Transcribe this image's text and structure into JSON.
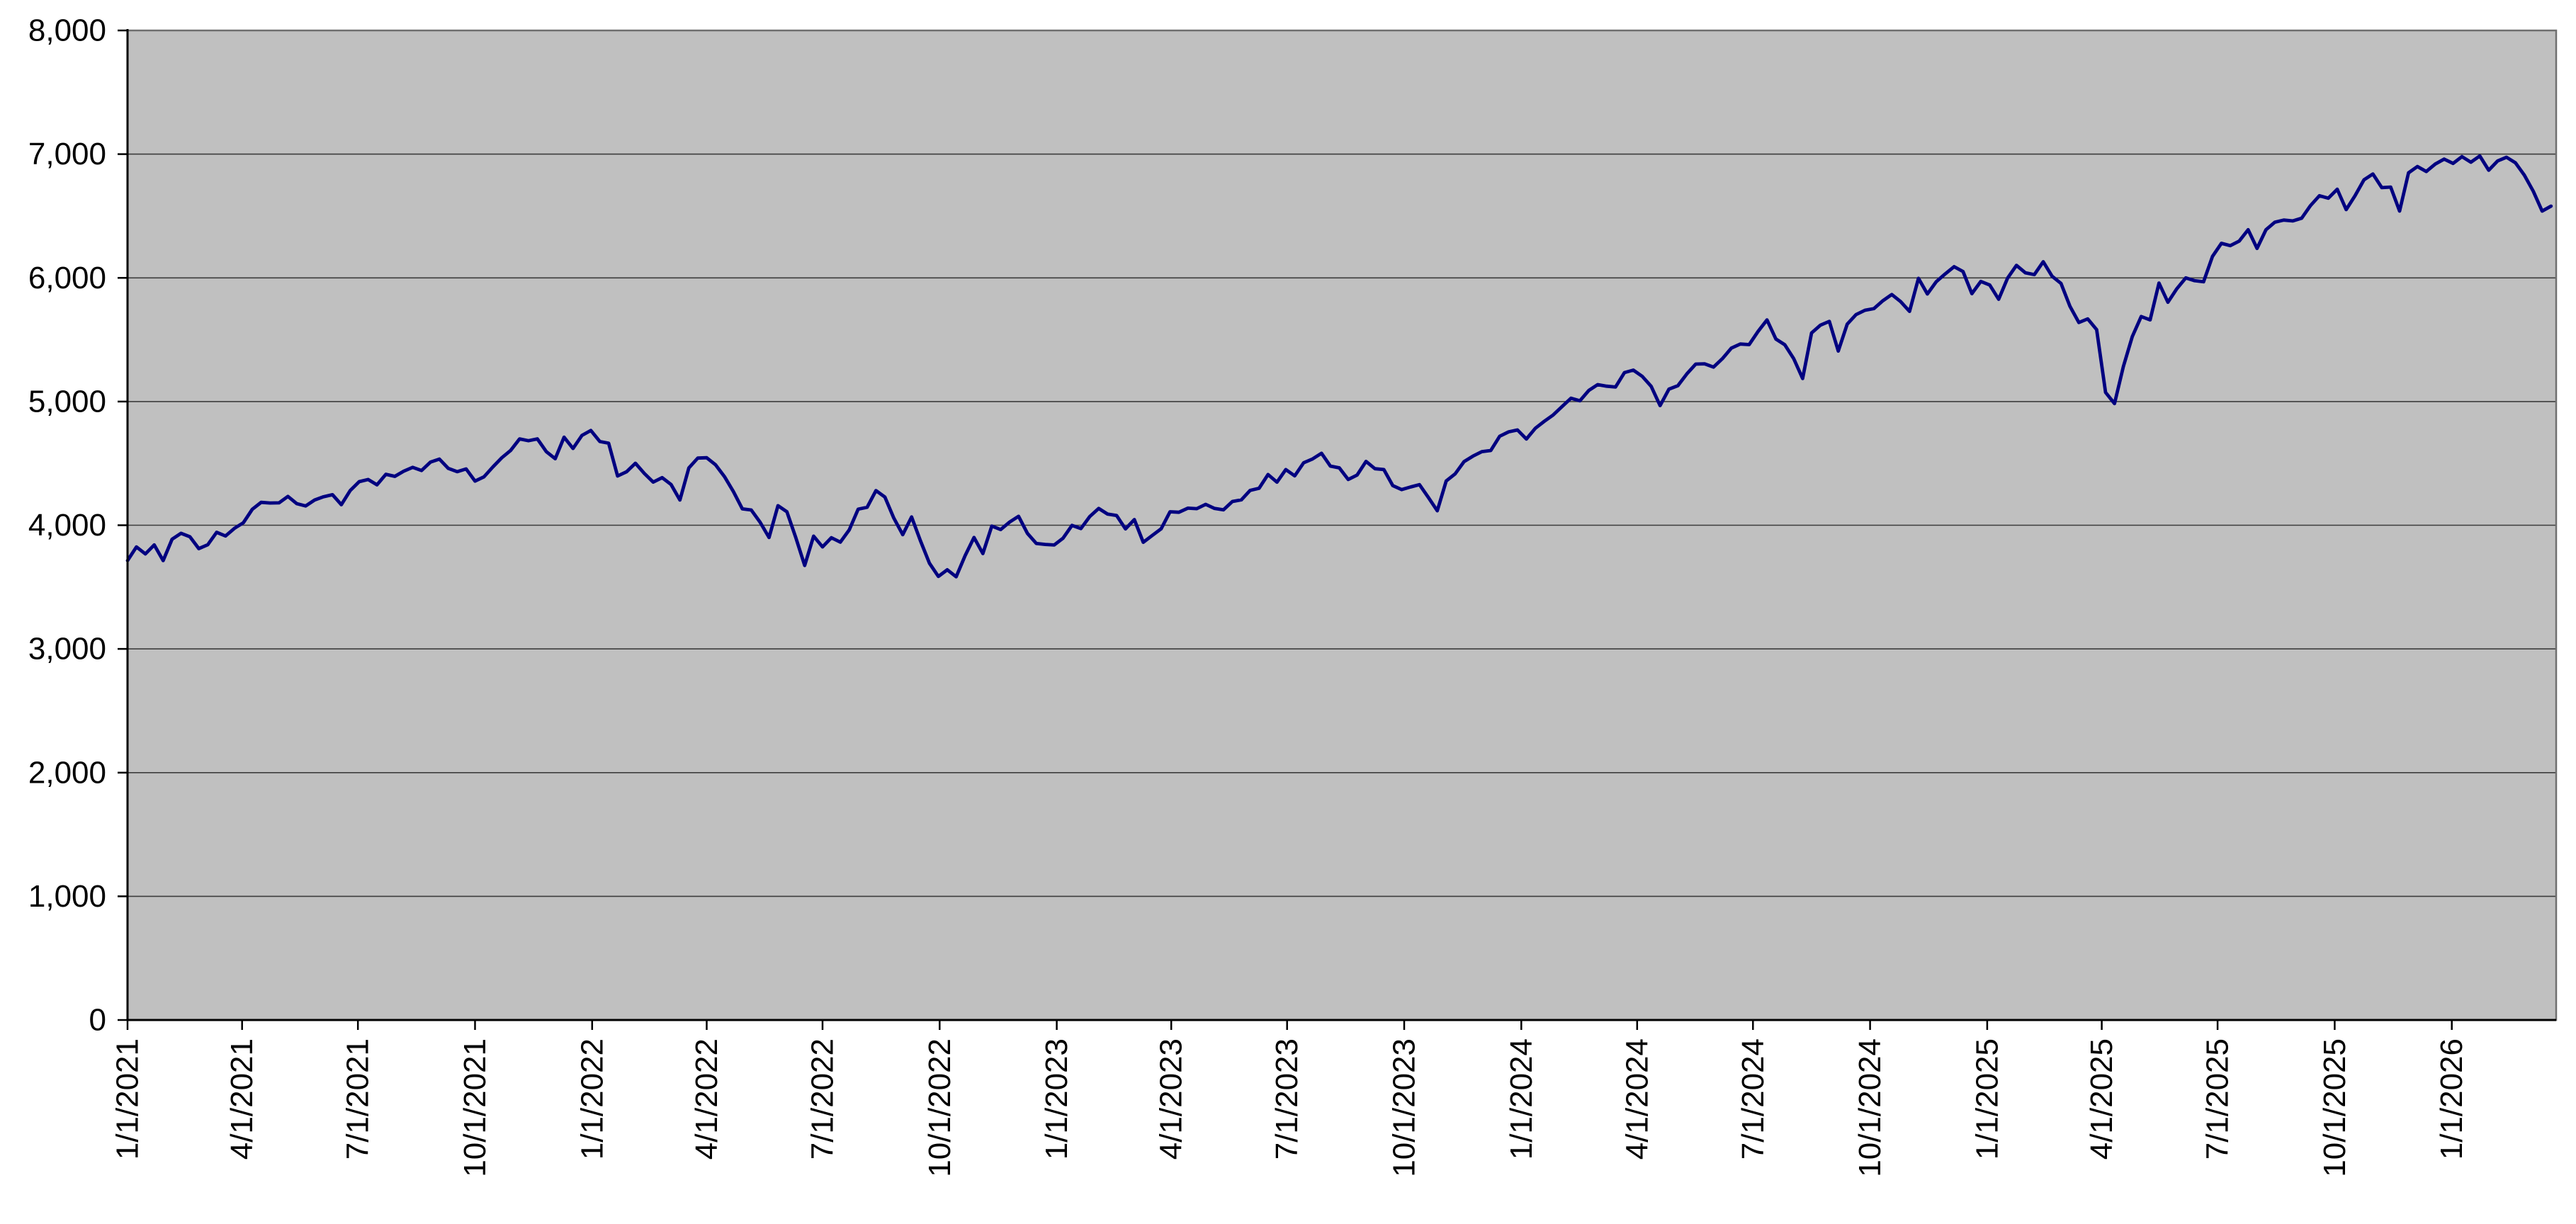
{
  "chart_data": {
    "type": "line",
    "plot_background": "#C0C0C0",
    "line_color": "#000080",
    "gridline_color": "#3C3C3C",
    "axis_color": "#000000",
    "plot_border_color": "#6F6F6F",
    "label_color": "#000000",
    "y_axis": {
      "min": 0,
      "max": 8000,
      "tick_step": 1000,
      "tick_labels": [
        "0",
        "1,000",
        "2,000",
        "3,000",
        "4,000",
        "5,000",
        "6,000",
        "7,000",
        "8,000"
      ]
    },
    "x_axis": {
      "start_date": "1/1/2021",
      "total_days_span": 1908,
      "tick_labels": [
        "1/1/2021",
        "4/1/2021",
        "7/1/2021",
        "10/1/2021",
        "1/1/2022",
        "4/1/2022",
        "7/1/2022",
        "10/1/2022",
        "1/1/2023",
        "4/1/2023",
        "7/1/2023",
        "10/1/2023",
        "1/1/2024",
        "4/1/2024",
        "7/1/2024",
        "10/1/2024",
        "1/1/2025",
        "4/1/2025",
        "7/1/2025",
        "10/1/2025",
        "1/1/2026"
      ]
    },
    "series": {
      "start_date": "1/1/2021",
      "interval_days": 7,
      "values": [
        3714,
        3825,
        3768,
        3841,
        3714,
        3887,
        3935,
        3907,
        3811,
        3842,
        3943,
        3913,
        3975,
        4020,
        4129,
        4185,
        4180,
        4181,
        4233,
        4174,
        4156,
        4204,
        4230,
        4247,
        4166,
        4281,
        4352,
        4370,
        4327,
        4412,
        4395,
        4437,
        4468,
        4442,
        4510,
        4535,
        4459,
        4433,
        4455,
        4357,
        4391,
        4471,
        4545,
        4605,
        4698,
        4683,
        4698,
        4595,
        4538,
        4712,
        4621,
        4726,
        4766,
        4677,
        4663,
        4398,
        4432,
        4501,
        4419,
        4349,
        4385,
        4329,
        4204,
        4463,
        4543,
        4546,
        4488,
        4393,
        4272,
        4132,
        4123,
        4024,
        3901,
        4158,
        4109,
        3901,
        3675,
        3912,
        3825,
        3899,
        3863,
        3962,
        4130,
        4145,
        4280,
        4228,
        4058,
        3924,
        4067,
        3873,
        3693,
        3586,
        3640,
        3583,
        3753,
        3901,
        3771,
        3993,
        3965,
        4026,
        4072,
        3934,
        3852,
        3845,
        3840,
        3895,
        3999,
        3973,
        4071,
        4136,
        4090,
        4079,
        3970,
        4046,
        3862,
        3917,
        3971,
        4109,
        4105,
        4138,
        4134,
        4169,
        4136,
        4124,
        4192,
        4205,
        4282,
        4299,
        4410,
        4348,
        4450,
        4399,
        4505,
        4536,
        4582,
        4478,
        4464,
        4370,
        4406,
        4516,
        4457,
        4450,
        4320,
        4288,
        4309,
        4328,
        4224,
        4117,
        4358,
        4415,
        4514,
        4559,
        4595,
        4604,
        4719,
        4755,
        4770,
        4697,
        4784,
        4840,
        4891,
        4959,
        5027,
        5006,
        5089,
        5137,
        5124,
        5117,
        5234,
        5254,
        5204,
        5123,
        4967,
        5100,
        5128,
        5223,
        5303,
        5305,
        5278,
        5347,
        5432,
        5465,
        5460,
        5567,
        5660,
        5505,
        5459,
        5347,
        5186,
        5554,
        5617,
        5648,
        5408,
        5626,
        5703,
        5738,
        5751,
        5815,
        5865,
        5808,
        5729,
        5996,
        5870,
        5969,
        6032,
        6090,
        6051,
        5872,
        5971,
        5942,
        5827,
        5997,
        6101,
        6041,
        6026,
        6130,
        6013,
        5955,
        5770,
        5639,
        5668,
        5581,
        5074,
        4983,
        5283,
        5525,
        5687,
        5660,
        5958,
        5803,
        5912,
        6000,
        5977,
        5968,
        6173,
        6279,
        6260,
        6297,
        6389,
        6238,
        6389,
        6450,
        6467,
        6460,
        6482,
        6584,
        6664,
        6644,
        6716,
        6552,
        6664,
        6792,
        6840,
        6729,
        6734,
        6540,
        6849,
        6900,
        6860,
        6920,
        6960,
        6925,
        6980,
        6935,
        6985,
        6870,
        6945,
        6975,
        6930,
        6830,
        6700,
        6540,
        6580
      ]
    },
    "layout_hints": {
      "legend": "none",
      "title": "none",
      "grid": "horizontal-only",
      "x_tick_label_rotation_deg": 90,
      "background_outside_plot": "#FFFFFF"
    }
  }
}
